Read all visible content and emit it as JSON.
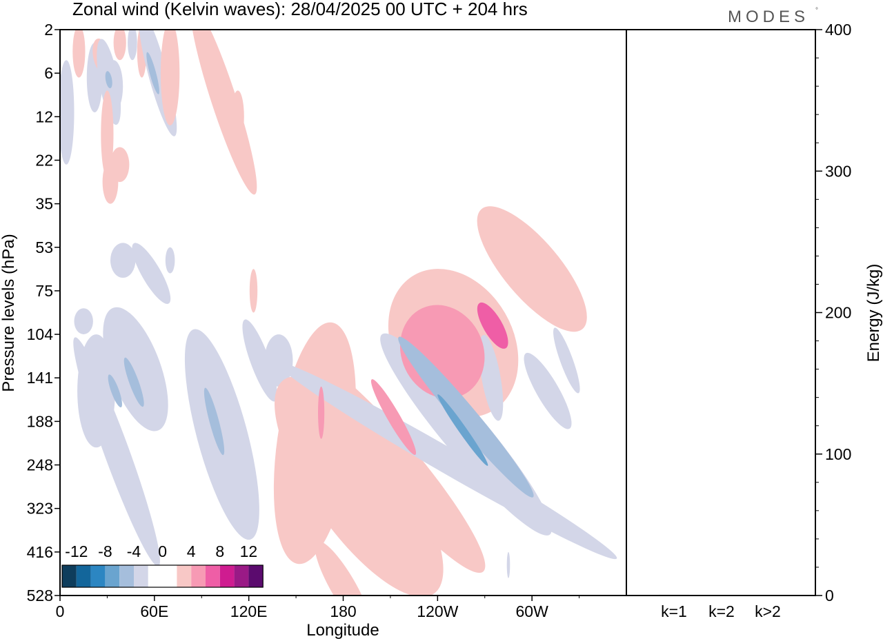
{
  "chart_data": {
    "type": "heatmap",
    "title": "Zonal wind (Kelvin waves):  28/04/2025  00 UTC  + 204 hrs",
    "brand": "MODES",
    "brand_mark": "°",
    "xlabel": "Longitude",
    "ylabel": "Pressure levels (hPa)",
    "x_ticks": [
      "0",
      "60E",
      "120E",
      "180",
      "120W",
      "60W"
    ],
    "y_ticks": [
      "2",
      "6",
      "12",
      "22",
      "35",
      "53",
      "75",
      "104",
      "141",
      "188",
      "248",
      "323",
      "416",
      "528"
    ],
    "colorbar": {
      "labels": [
        "-12",
        "-8",
        "-4",
        "0",
        "4",
        "8",
        "12"
      ],
      "colors": [
        "#0e3d5c",
        "#13669b",
        "#2c86c2",
        "#6aa4cf",
        "#a5bedc",
        "#d3d6e8",
        "#ffffff",
        "#ffffff",
        "#f8c8c6",
        "#f79ab4",
        "#ef5ea6",
        "#cf1c90",
        "#9a1a86",
        "#5b0b6e"
      ]
    },
    "anomalies": [
      {
        "lon": 4,
        "lev": 1.9,
        "level": -1,
        "ang": 0,
        "rlon": 5,
        "rlev": 1.2
      },
      {
        "lon": 12,
        "lev": 0.5,
        "level": 1,
        "ang": 0,
        "rlon": 4,
        "rlev": 0.6
      },
      {
        "lon": 22,
        "lev": 1.1,
        "level": -1,
        "ang": 0,
        "rlon": 5,
        "rlev": 0.8
      },
      {
        "lon": 26,
        "lev": 0.6,
        "level": 1,
        "ang": 10,
        "rlon": 5,
        "rlev": 0.4
      },
      {
        "lon": 31,
        "lev": 1.2,
        "level": -1,
        "ang": 10,
        "rlon": 6,
        "rlev": 1.0
      },
      {
        "lon": 31,
        "lev": 1.15,
        "level": -2,
        "ang": 10,
        "rlon": 2,
        "rlev": 0.2
      },
      {
        "lon": 34,
        "lev": 1.3,
        "level": -1,
        "ang": 0,
        "rlon": 6,
        "rlev": 0.6
      },
      {
        "lon": 30,
        "lev": 2.4,
        "level": 1,
        "ang": 0,
        "rlon": 4,
        "rlev": 1.0
      },
      {
        "lon": 38,
        "lev": 0.3,
        "level": 1,
        "ang": 0,
        "rlon": 4,
        "rlev": 0.4
      },
      {
        "lon": 38,
        "lev": 3.1,
        "level": 1,
        "ang": 0,
        "rlon": 6,
        "rlev": 0.4
      },
      {
        "lon": 32,
        "lev": 3.5,
        "level": 1,
        "ang": 0,
        "rlon": 5,
        "rlev": 0.5
      },
      {
        "lon": 52,
        "lev": 0.5,
        "level": 1,
        "ang": 0,
        "rlon": 3,
        "rlev": 0.6
      },
      {
        "lon": 46,
        "lev": 0.3,
        "level": -1,
        "ang": 0,
        "rlon": 3,
        "rlev": 0.4
      },
      {
        "lon": 62,
        "lev": 1.0,
        "level": -1,
        "ang": 15,
        "rlon": 6,
        "rlev": 1.5
      },
      {
        "lon": 59,
        "lev": 1.0,
        "level": -2,
        "ang": 15,
        "rlon": 2,
        "rlev": 0.5
      },
      {
        "lon": 70,
        "lev": 1.0,
        "level": 1,
        "ang": 0,
        "rlon": 6,
        "rlev": 1.2
      },
      {
        "lon": 93,
        "lev": 0.4,
        "level": -1,
        "ang": 0,
        "rlon": 3,
        "rlev": 0.6
      },
      {
        "lon": 104,
        "lev": 1.6,
        "level": 1,
        "ang": 18,
        "rlon": 8,
        "rlev": 2.3
      },
      {
        "lon": 113,
        "lev": 2.0,
        "level": 1,
        "ang": 0,
        "rlon": 4,
        "rlev": 0.6
      },
      {
        "lon": 40,
        "lev": 5.3,
        "level": -1,
        "ang": 0,
        "rlon": 8,
        "rlev": 0.4
      },
      {
        "lon": 58,
        "lev": 5.6,
        "level": -1,
        "ang": 30,
        "rlon": 6,
        "rlev": 0.8
      },
      {
        "lon": 70,
        "lev": 5.3,
        "level": -1,
        "ang": 0,
        "rlon": 3,
        "rlev": 0.3
      },
      {
        "lon": 15,
        "lev": 6.7,
        "level": -1,
        "ang": 0,
        "rlon": 6,
        "rlev": 0.3
      },
      {
        "lon": 23,
        "lev": 8.3,
        "level": -1,
        "ang": 0,
        "rlon": 12,
        "rlev": 1.3
      },
      {
        "lon": 36,
        "lev": 9.7,
        "level": -1,
        "ang": 20,
        "rlon": 8,
        "rlev": 2.8
      },
      {
        "lon": 35,
        "lev": 8.3,
        "level": -2,
        "ang": 20,
        "rlon": 2.5,
        "rlev": 0.4
      },
      {
        "lon": 47,
        "lev": 8.1,
        "level": -2,
        "ang": 20,
        "rlon": 3,
        "rlev": 0.6
      },
      {
        "lon": 48,
        "lev": 7.8,
        "level": -1,
        "ang": 20,
        "rlon": 16,
        "rlev": 1.5
      },
      {
        "lon": 103,
        "lev": 9.3,
        "level": -1,
        "ang": 15,
        "rlon": 16,
        "rlev": 2.5
      },
      {
        "lon": 98,
        "lev": 9.0,
        "level": -2,
        "ang": 15,
        "rlon": 3,
        "rlev": 0.8
      },
      {
        "lon": 127,
        "lev": 7.6,
        "level": -1,
        "ang": 20,
        "rlon": 6,
        "rlev": 1.0
      },
      {
        "lon": 139,
        "lev": 7.6,
        "level": -1,
        "ang": 0,
        "rlon": 9,
        "rlev": 0.6
      },
      {
        "lon": 123,
        "lev": 6.0,
        "level": 1,
        "ang": 0,
        "rlon": 2.5,
        "rlev": 0.5
      },
      {
        "lon": 162,
        "lev": 9.5,
        "level": 1,
        "ang": -8,
        "rlon": 24,
        "rlev": 2.8
      },
      {
        "lon": 166,
        "lev": 8.8,
        "level": 2,
        "ang": 0,
        "rlon": 2,
        "rlev": 0.6
      },
      {
        "lon": 190,
        "lev": 10.5,
        "level": 1,
        "ang": 35,
        "rlon": 30,
        "rlev": 3.0
      },
      {
        "lon": 180,
        "lev": 12.8,
        "level": 1,
        "ang": 30,
        "rlon": 8,
        "rlev": 1.2
      },
      {
        "lon": 212,
        "lev": 10.0,
        "level": 1,
        "ang": 40,
        "rlon": 16,
        "rlev": 3.2
      },
      {
        "lon": 212,
        "lev": 8.9,
        "level": 2,
        "ang": 30,
        "rlon": 4,
        "rlev": 1.0
      },
      {
        "lon": 250,
        "lev": 7.2,
        "level": 1,
        "ang": 30,
        "rlon": 38,
        "rlev": 1.8
      },
      {
        "lon": 243,
        "lev": 7.4,
        "level": 2,
        "ang": 25,
        "rlon": 26,
        "rlev": 1.1
      },
      {
        "lon": 275,
        "lev": 6.8,
        "level": 3,
        "ang": 30,
        "rlon": 6,
        "rlev": 0.6
      },
      {
        "lon": 300,
        "lev": 5.5,
        "level": 1,
        "ang": 40,
        "rlon": 18,
        "rlev": 1.8
      },
      {
        "lon": 246,
        "lev": 9.9,
        "level": -1,
        "ang": 60,
        "rlon": 8,
        "rlev": 4.5
      },
      {
        "lon": 258,
        "lev": 9.3,
        "level": -1,
        "ang": 40,
        "rlon": 14,
        "rlev": 3.0
      },
      {
        "lon": 258,
        "lev": 8.9,
        "level": -2,
        "ang": 40,
        "rlon": 7,
        "rlev": 2.4
      },
      {
        "lon": 256,
        "lev": 9.2,
        "level": -3,
        "ang": 35,
        "rlon": 2.5,
        "rlev": 1.0
      },
      {
        "lon": 274,
        "lev": 8.0,
        "level": -1,
        "ang": 10,
        "rlon": 6,
        "rlev": 1.0
      },
      {
        "lon": 310,
        "lev": 8.3,
        "level": -1,
        "ang": 30,
        "rlon": 7,
        "rlev": 1.0
      },
      {
        "lon": 322,
        "lev": 7.6,
        "level": -1,
        "ang": 20,
        "rlon": 4,
        "rlev": 0.8
      },
      {
        "lon": 285,
        "lev": 12.3,
        "level": -1,
        "ang": 0,
        "rlon": 1,
        "rlev": 0.3
      }
    ],
    "energy_axis": {
      "label": "Energy (J/kg)",
      "ticks": [
        "0",
        "100",
        "200",
        "300",
        "400"
      ],
      "ylim": [
        0,
        400
      ],
      "categories": [
        "k=1",
        "k=2",
        "k>2"
      ],
      "values": [
        0.5,
        0.3,
        0.4
      ]
    },
    "colors": {
      "background": "#ffffff",
      "axis": "#000000"
    }
  }
}
